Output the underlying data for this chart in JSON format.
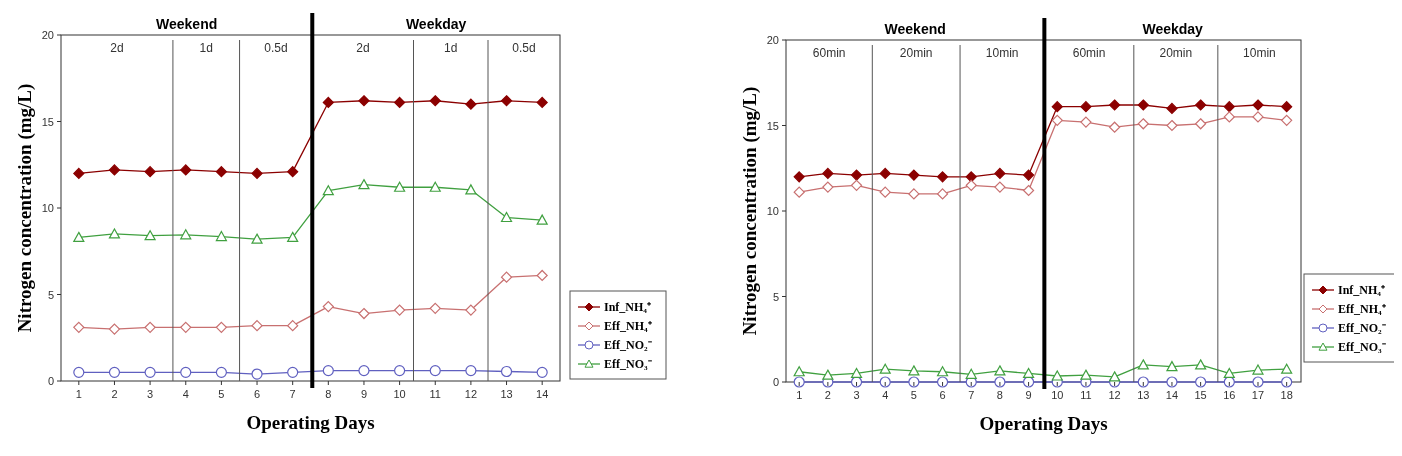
{
  "chart_data": [
    {
      "type": "line",
      "xlabel": "Operating Days",
      "ylabel": "Nitrogen concentration (mg/L)",
      "x": [
        1,
        2,
        3,
        4,
        5,
        6,
        7,
        8,
        9,
        10,
        11,
        12,
        13,
        14
      ],
      "xlim": [
        0.5,
        14.5
      ],
      "xticks": [
        1,
        2,
        3,
        4,
        5,
        6,
        7,
        8,
        9,
        10,
        11,
        12,
        13,
        14
      ],
      "ylim": [
        0,
        20
      ],
      "yticks": [
        0,
        5,
        10,
        15,
        20
      ],
      "grid": false,
      "legend": "bottom right",
      "marker": "circle",
      "line_style": "solid",
      "series": [
        {
          "name": "Inf_NH₄⁺",
          "color": "#8b0000",
          "marker": "diamond",
          "values": [
            12.0,
            12.2,
            12.1,
            12.2,
            12.1,
            12.0,
            12.1,
            16.1,
            16.2,
            16.1,
            16.2,
            16.0,
            16.2,
            16.1
          ]
        },
        {
          "name": "Eff_NH₄⁺",
          "color": "#c87070",
          "marker": "diamond",
          "values": [
            3.1,
            3.0,
            3.1,
            3.1,
            3.1,
            3.2,
            3.2,
            4.3,
            3.9,
            4.1,
            4.2,
            4.1,
            6.0,
            6.1
          ]
        },
        {
          "name": "Eff_NO₂⁻",
          "color": "#6060c0",
          "marker": "circle",
          "values": [
            0.5,
            0.5,
            0.5,
            0.5,
            0.5,
            0.4,
            0.5,
            0.6,
            0.6,
            0.6,
            0.6,
            0.6,
            0.55,
            0.5
          ]
        },
        {
          "name": "Eff_NO₃⁻",
          "color": "#40a040",
          "marker": "triangle",
          "values": [
            8.3,
            8.5,
            8.4,
            8.45,
            8.35,
            8.2,
            8.3,
            11.0,
            11.35,
            11.2,
            11.2,
            11.05,
            9.45,
            9.3
          ]
        }
      ],
      "ref_lines": [
        {
          "axis": "x",
          "value": 3.64,
          "color": "#555555"
        },
        {
          "axis": "x",
          "value": 5.51,
          "color": "#555555"
        },
        {
          "axis": "x",
          "value": 7.55,
          "color": "#000000"
        },
        {
          "axis": "x",
          "value": 10.39,
          "color": "#555555"
        },
        {
          "axis": "x",
          "value": 12.48,
          "color": "#555555"
        }
      ],
      "annotations": [
        "Weekend",
        "Weekday",
        "2d",
        "1d",
        "0.5d",
        "2d",
        "1d",
        "0.5d"
      ]
    },
    {
      "type": "line",
      "xlabel": "Operating Days",
      "ylabel": "Nitrogen concentration (mg/L)",
      "x": [
        1,
        2,
        3,
        4,
        5,
        6,
        7,
        8,
        9,
        10,
        11,
        12,
        13,
        14,
        15,
        16,
        17,
        18
      ],
      "xlim": [
        0.54,
        18.5
      ],
      "xticks": [
        1,
        2,
        3,
        4,
        5,
        6,
        7,
        8,
        9,
        10,
        11,
        12,
        13,
        14,
        15,
        16,
        17,
        18
      ],
      "ylim": [
        0,
        20
      ],
      "yticks": [
        0,
        5,
        10,
        15,
        20
      ],
      "grid": false,
      "legend": "bottom right",
      "marker": "circle",
      "line_style": "solid",
      "series": [
        {
          "name": "Inf_NH₄⁺",
          "color": "#8b0000",
          "marker": "diamond",
          "values": [
            12.0,
            12.2,
            12.1,
            12.2,
            12.1,
            12.0,
            12.0,
            12.2,
            12.1,
            16.1,
            16.1,
            16.2,
            16.2,
            16.0,
            16.2,
            16.1,
            16.2,
            16.1
          ]
        },
        {
          "name": "Eff_NH₄⁺",
          "color": "#c87070",
          "marker": "diamond",
          "values": [
            11.1,
            11.4,
            11.5,
            11.1,
            11.0,
            11.0,
            11.5,
            11.4,
            11.2,
            15.3,
            15.2,
            14.9,
            15.1,
            15.0,
            15.1,
            15.5,
            15.5,
            15.3
          ]
        },
        {
          "name": "Eff_NO₂⁻",
          "color": "#6060c0",
          "marker": "circle",
          "values": [
            0,
            0,
            0,
            0,
            0,
            0,
            0,
            0,
            0,
            0,
            0,
            0,
            0,
            0,
            0,
            0,
            0,
            0
          ]
        },
        {
          "name": "Eff_NO₃⁻",
          "color": "#40a040",
          "marker": "triangle",
          "values": [
            0.6,
            0.4,
            0.5,
            0.75,
            0.65,
            0.6,
            0.45,
            0.65,
            0.5,
            0.35,
            0.4,
            0.3,
            1.0,
            0.9,
            1.0,
            0.5,
            0.7,
            0.75
          ]
        }
      ],
      "ref_lines": [
        {
          "axis": "x",
          "value": 3.55,
          "color": "#555555"
        },
        {
          "axis": "x",
          "value": 6.61,
          "color": "#555555"
        },
        {
          "axis": "x",
          "value": 9.55,
          "color": "#000000"
        },
        {
          "axis": "x",
          "value": 12.67,
          "color": "#555555"
        },
        {
          "axis": "x",
          "value": 15.6,
          "color": "#555555"
        }
      ],
      "annotations": [
        "Weekend",
        "Weekday",
        "60min",
        "20min",
        "10min",
        "60min",
        "20min",
        "10min"
      ]
    }
  ]
}
